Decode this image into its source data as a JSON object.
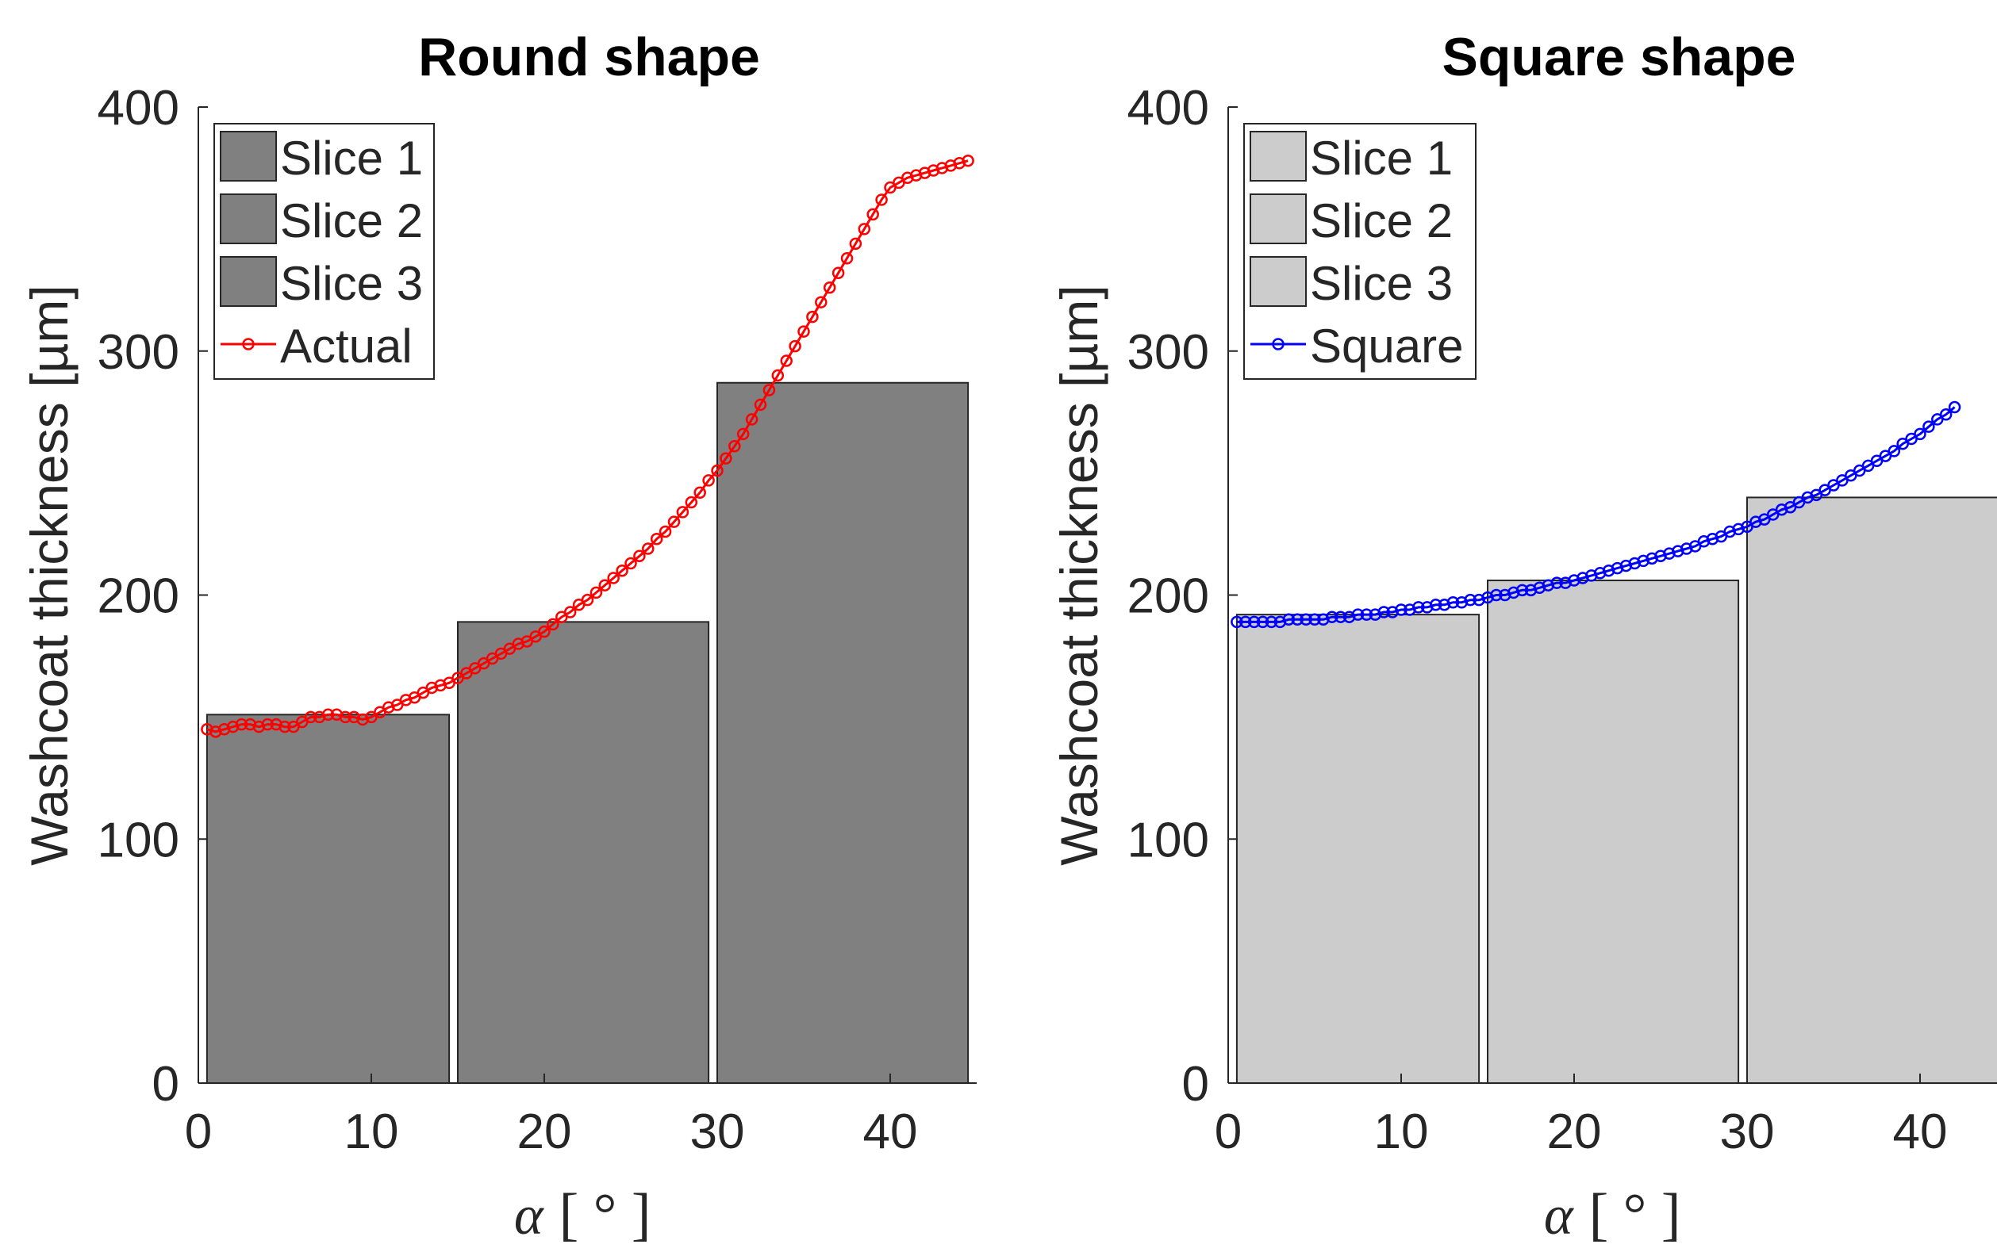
{
  "chart_data": [
    {
      "type": "bar",
      "title": "Round shape",
      "ylabel": "Washcoat thickness [µm]",
      "xlabel_symbol": "α",
      "xlabel_unit": "[ ° ]",
      "xlim": [
        0,
        45
      ],
      "ylim": [
        0,
        400
      ],
      "xticks": [
        0,
        10,
        20,
        30,
        40
      ],
      "yticks": [
        0,
        100,
        200,
        300,
        400
      ],
      "grid": false,
      "legend_position": "top-left",
      "bar_color": "#808080",
      "bars": [
        {
          "name": "Slice 1",
          "x_start": 0.5,
          "x_end": 14.5,
          "value": 151
        },
        {
          "name": "Slice 2",
          "x_start": 15.0,
          "x_end": 29.5,
          "value": 189
        },
        {
          "name": "Slice 3",
          "x_start": 30.0,
          "x_end": 44.5,
          "value": 287
        }
      ],
      "line": {
        "name": "Actual",
        "color": "#ff0000",
        "x": [
          0.5,
          1,
          1.5,
          2,
          2.5,
          3,
          3.5,
          4,
          4.5,
          5,
          5.5,
          6,
          6.5,
          7,
          7.5,
          8,
          8.5,
          9,
          9.5,
          10,
          10.5,
          11,
          11.5,
          12,
          12.5,
          13,
          13.5,
          14,
          14.5,
          15,
          15.5,
          16,
          16.5,
          17,
          17.5,
          18,
          18.5,
          19,
          19.5,
          20,
          20.5,
          21,
          21.5,
          22,
          22.5,
          23,
          23.5,
          24,
          24.5,
          25,
          25.5,
          26,
          26.5,
          27,
          27.5,
          28,
          28.5,
          29,
          29.5,
          30,
          30.5,
          31,
          31.5,
          32,
          32.5,
          33,
          33.5,
          34,
          34.5,
          35,
          35.5,
          36,
          36.5,
          37,
          37.5,
          38,
          38.5,
          39,
          39.5,
          40,
          40.5,
          41,
          41.5,
          42,
          42.5,
          43,
          43.5,
          44,
          44.5
        ],
        "y": [
          145,
          144,
          145,
          146,
          147,
          147,
          146,
          147,
          147,
          146,
          146,
          148,
          150,
          150,
          151,
          151,
          150,
          150,
          149,
          150,
          152,
          154,
          155,
          157,
          158,
          160,
          162,
          163,
          164,
          166,
          168,
          170,
          172,
          174,
          176,
          178,
          180,
          181,
          183,
          185,
          188,
          191,
          193,
          196,
          198,
          201,
          204,
          207,
          210,
          213,
          216,
          219,
          223,
          226,
          230,
          234,
          238,
          242,
          247,
          251,
          256,
          261,
          266,
          272,
          278,
          284,
          290,
          296,
          302,
          308,
          314,
          320,
          326,
          332,
          338,
          344,
          350,
          356,
          362,
          367,
          369,
          371,
          372,
          373,
          374,
          375,
          376,
          377,
          378
        ]
      }
    },
    {
      "type": "bar",
      "title": "Square shape",
      "ylabel": "Washcoat thickness [µm]",
      "xlabel_symbol": "α",
      "xlabel_unit": "[ ° ]",
      "xlim": [
        0,
        45
      ],
      "ylim": [
        0,
        400
      ],
      "xticks": [
        0,
        10,
        20,
        30,
        40
      ],
      "yticks": [
        0,
        100,
        200,
        300,
        400
      ],
      "grid": false,
      "legend_position": "top-left",
      "bar_color": "#cccccc",
      "bars": [
        {
          "name": "Slice 1",
          "x_start": 0.5,
          "x_end": 14.5,
          "value": 192
        },
        {
          "name": "Slice 2",
          "x_start": 15.0,
          "x_end": 29.5,
          "value": 206
        },
        {
          "name": "Slice 3",
          "x_start": 30.0,
          "x_end": 44.5,
          "value": 240
        }
      ],
      "line": {
        "name": "Square",
        "color": "#0000ff",
        "x": [
          0.5,
          1,
          1.5,
          2,
          2.5,
          3,
          3.5,
          4,
          4.5,
          5,
          5.5,
          6,
          6.5,
          7,
          7.5,
          8,
          8.5,
          9,
          9.5,
          10,
          10.5,
          11,
          11.5,
          12,
          12.5,
          13,
          13.5,
          14,
          14.5,
          15,
          15.5,
          16,
          16.5,
          17,
          17.5,
          18,
          18.5,
          19,
          19.5,
          20,
          20.5,
          21,
          21.5,
          22,
          22.5,
          23,
          23.5,
          24,
          24.5,
          25,
          25.5,
          26,
          26.5,
          27,
          27.5,
          28,
          28.5,
          29,
          29.5,
          30,
          30.5,
          31,
          31.5,
          32,
          32.5,
          33,
          33.5,
          34,
          34.5,
          35,
          35.5,
          36,
          36.5,
          37,
          37.5,
          38,
          38.5,
          39,
          39.5,
          40,
          40.5,
          41,
          41.5,
          42
        ],
        "y": [
          189,
          189,
          189,
          189,
          189,
          189,
          190,
          190,
          190,
          190,
          190,
          191,
          191,
          191,
          192,
          192,
          192,
          193,
          193,
          194,
          194,
          195,
          195,
          196,
          196,
          197,
          197,
          198,
          198,
          199,
          200,
          200,
          201,
          202,
          202,
          203,
          204,
          205,
          205,
          206,
          207,
          208,
          209,
          210,
          211,
          212,
          213,
          214,
          215,
          216,
          217,
          218,
          219,
          220,
          222,
          223,
          224,
          226,
          227,
          228,
          230,
          231,
          233,
          235,
          236,
          238,
          240,
          241,
          243,
          245,
          247,
          249,
          251,
          253,
          255,
          257,
          259,
          262,
          264,
          266,
          269,
          272,
          274,
          277
        ]
      }
    }
  ]
}
